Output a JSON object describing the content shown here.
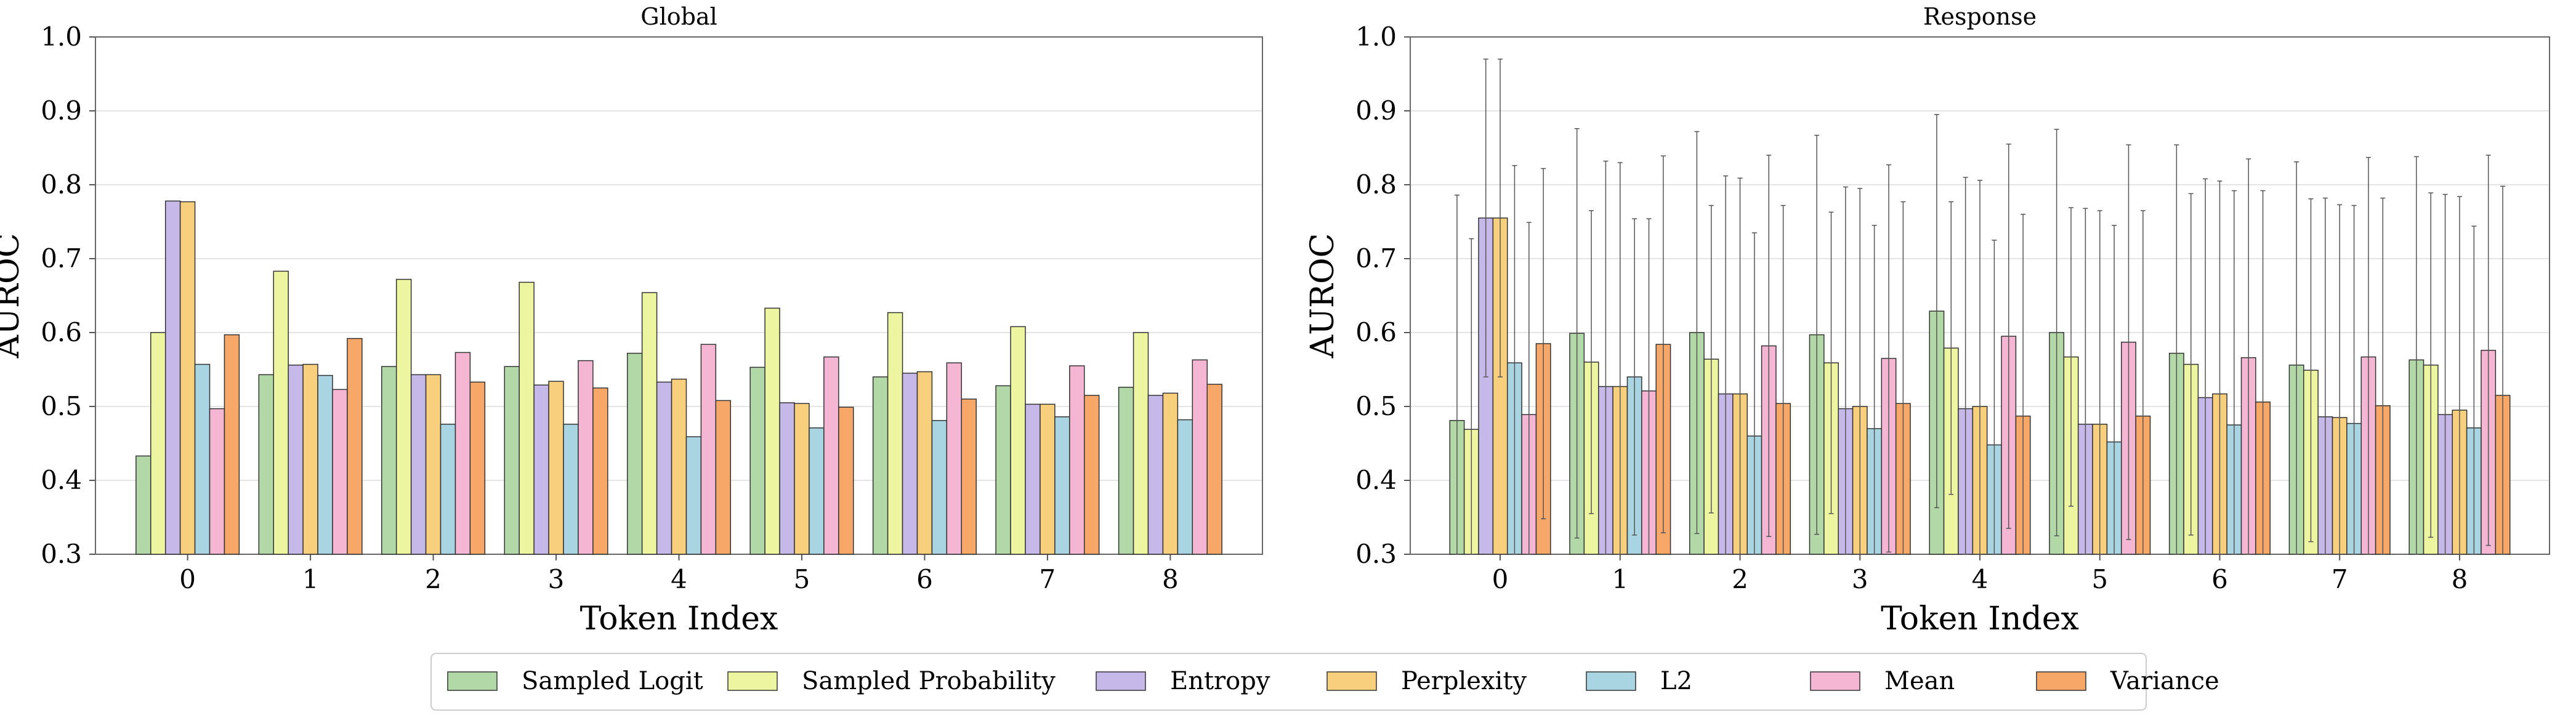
{
  "chart_data": {
    "type": "bar",
    "shared_ylabel": "AUROC",
    "shared_xlabel": "Token Index",
    "ylim": [
      0.3,
      1.0
    ],
    "yticks": [
      "0.3",
      "0.4",
      "0.5",
      "0.6",
      "0.7",
      "0.8",
      "0.9",
      "1.0"
    ],
    "grid": "horizontal",
    "legend_placement": "bottom-center",
    "categories": [
      "0",
      "1",
      "2",
      "3",
      "4",
      "5",
      "6",
      "7",
      "8"
    ],
    "series_styles": [
      {
        "name": "Sampled Logit",
        "color": "#b2d8a8"
      },
      {
        "name": "Sampled Probability",
        "color": "#eef5a0"
      },
      {
        "name": "Entropy",
        "color": "#c7b8ea"
      },
      {
        "name": "Perplexity",
        "color": "#f7cf7d"
      },
      {
        "name": "L2",
        "color": "#a9d4e2"
      },
      {
        "name": "Mean",
        "color": "#f4b6d2"
      },
      {
        "name": "Variance",
        "color": "#f7a868"
      }
    ],
    "panels": [
      {
        "title": "Global",
        "has_error_bars": false,
        "series": [
          {
            "name": "Sampled Logit",
            "values": [
              0.433,
              0.543,
              0.554,
              0.554,
              0.572,
              0.553,
              0.54,
              0.528,
              0.526
            ]
          },
          {
            "name": "Sampled Probability",
            "values": [
              0.6,
              0.683,
              0.672,
              0.668,
              0.654,
              0.633,
              0.627,
              0.608,
              0.6
            ]
          },
          {
            "name": "Entropy",
            "values": [
              0.778,
              0.556,
              0.543,
              0.529,
              0.533,
              0.505,
              0.545,
              0.503,
              0.515
            ]
          },
          {
            "name": "Perplexity",
            "values": [
              0.777,
              0.557,
              0.543,
              0.534,
              0.537,
              0.504,
              0.547,
              0.503,
              0.518
            ]
          },
          {
            "name": "L2",
            "values": [
              0.557,
              0.542,
              0.476,
              0.476,
              0.459,
              0.471,
              0.481,
              0.486,
              0.482
            ]
          },
          {
            "name": "Mean",
            "values": [
              0.497,
              0.523,
              0.573,
              0.562,
              0.584,
              0.567,
              0.559,
              0.555,
              0.563
            ]
          },
          {
            "name": "Variance",
            "values": [
              0.597,
              0.592,
              0.533,
              0.525,
              0.508,
              0.499,
              0.51,
              0.515,
              0.53
            ]
          }
        ]
      },
      {
        "title": "Response",
        "has_error_bars": true,
        "series": [
          {
            "name": "Sampled Logit",
            "values": [
              0.481,
              0.599,
              0.6,
              0.597,
              0.629,
              0.6,
              0.572,
              0.556,
              0.563
            ],
            "errors": [
              0.305,
              0.277,
              0.272,
              0.27,
              0.266,
              0.275,
              0.282,
              0.275,
              0.275
            ]
          },
          {
            "name": "Sampled Probability",
            "values": [
              0.469,
              0.56,
              0.564,
              0.559,
              0.579,
              0.567,
              0.557,
              0.549,
              0.556
            ],
            "errors": [
              0.258,
              0.205,
              0.208,
              0.204,
              0.198,
              0.202,
              0.231,
              0.232,
              0.233
            ]
          },
          {
            "name": "Entropy",
            "values": [
              0.755,
              0.527,
              0.517,
              0.497,
              0.497,
              0.476,
              0.512,
              0.486,
              0.489
            ],
            "errors": [
              0.215,
              0.305,
              0.295,
              0.3,
              0.313,
              0.292,
              0.296,
              0.296,
              0.298
            ]
          },
          {
            "name": "Perplexity",
            "values": [
              0.755,
              0.527,
              0.517,
              0.5,
              0.5,
              0.476,
              0.517,
              0.485,
              0.495
            ],
            "errors": [
              0.215,
              0.303,
              0.292,
              0.295,
              0.306,
              0.289,
              0.288,
              0.288,
              0.289
            ]
          },
          {
            "name": "L2",
            "values": [
              0.559,
              0.54,
              0.46,
              0.47,
              0.448,
              0.452,
              0.475,
              0.477,
              0.471
            ],
            "errors": [
              0.267,
              0.214,
              0.275,
              0.275,
              0.277,
              0.293,
              0.317,
              0.295,
              0.273
            ]
          },
          {
            "name": "Mean",
            "values": [
              0.489,
              0.521,
              0.582,
              0.565,
              0.595,
              0.587,
              0.566,
              0.567,
              0.576
            ],
            "errors": [
              0.26,
              0.233,
              0.258,
              0.262,
              0.26,
              0.267,
              0.269,
              0.27,
              0.264
            ]
          },
          {
            "name": "Variance",
            "values": [
              0.585,
              0.584,
              0.504,
              0.504,
              0.487,
              0.487,
              0.506,
              0.501,
              0.515
            ],
            "errors": [
              0.237,
              0.255,
              0.268,
              0.273,
              0.273,
              0.278,
              0.286,
              0.281,
              0.283
            ]
          }
        ]
      }
    ]
  }
}
